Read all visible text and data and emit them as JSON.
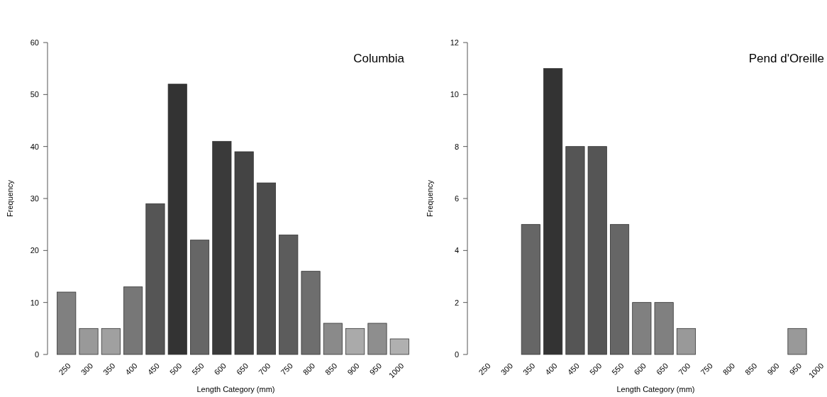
{
  "chart_data": [
    {
      "type": "bar",
      "title": "Columbia",
      "xlabel": "Length Category (mm)",
      "ylabel": "Frequency",
      "categories": [
        "250",
        "300",
        "350",
        "400",
        "450",
        "500",
        "550",
        "600",
        "650",
        "700",
        "750",
        "800",
        "850",
        "900",
        "950",
        "1000"
      ],
      "values": [
        12,
        5,
        5,
        13,
        29,
        52,
        22,
        41,
        39,
        33,
        23,
        16,
        6,
        5,
        6,
        3
      ],
      "colors": [
        "#808080",
        "#999999",
        "#a0a0a0",
        "#777777",
        "#555555",
        "#333333",
        "#666666",
        "#3a3a3a",
        "#444444",
        "#4c4c4c",
        "#5c5c5c",
        "#6e6e6e",
        "#8a8a8a",
        "#aaaaaa",
        "#8e8e8e",
        "#b0b0b0"
      ],
      "ylim": [
        0,
        60
      ],
      "yticks": [
        0,
        10,
        20,
        30,
        40,
        50,
        60
      ],
      "grid": false
    },
    {
      "type": "bar",
      "title": "Pend d'Oreille",
      "xlabel": "Length Category (mm)",
      "ylabel": "Frequency",
      "categories": [
        "250",
        "300",
        "350",
        "400",
        "450",
        "500",
        "550",
        "600",
        "650",
        "700",
        "750",
        "800",
        "850",
        "900",
        "950",
        "1000"
      ],
      "values": [
        0,
        0,
        5,
        11,
        8,
        8,
        5,
        2,
        2,
        1,
        0,
        0,
        0,
        0,
        1,
        0
      ],
      "colors": [
        "#eeeeee",
        "#eeeeee",
        "#666666",
        "#333333",
        "#555555",
        "#555555",
        "#666666",
        "#808080",
        "#808080",
        "#999999",
        "#eeeeee",
        "#eeeeee",
        "#eeeeee",
        "#eeeeee",
        "#999999",
        "#eeeeee"
      ],
      "ylim": [
        0,
        12
      ],
      "yticks": [
        0,
        2,
        4,
        6,
        8,
        10,
        12
      ],
      "grid": false
    }
  ]
}
